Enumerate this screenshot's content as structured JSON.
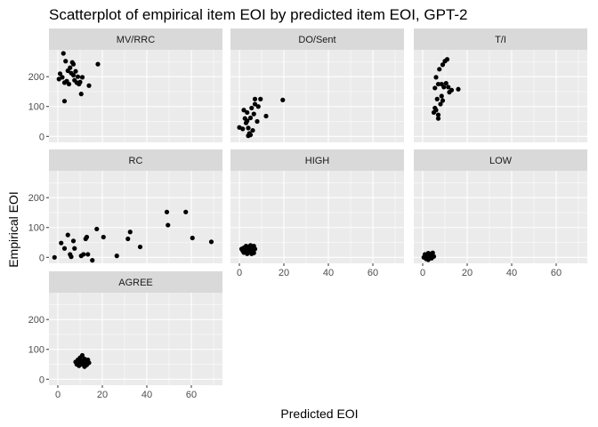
{
  "chart_data": {
    "type": "scatter",
    "title": "Scatterplot of empirical item EOI by predicted item EOI, GPT-2",
    "xlabel": "Predicted EOI",
    "ylabel": "Empirical EOI",
    "xlim": [
      -4,
      74
    ],
    "ylim": [
      -20,
      290
    ],
    "x_ticks": [
      0,
      20,
      40,
      60
    ],
    "y_ticks": [
      0,
      100,
      200
    ],
    "grid": true,
    "background": "#EBEBEB",
    "strip_color": "#D9D9D9",
    "point_color": "#000000",
    "panels": [
      {
        "name": "MV/RRC",
        "points": [
          [
            0.5,
            192
          ],
          [
            1,
            210
          ],
          [
            2,
            198
          ],
          [
            2.5,
            278
          ],
          [
            3,
            180
          ],
          [
            3,
            118
          ],
          [
            3.5,
            252
          ],
          [
            4,
            185
          ],
          [
            4.5,
            220
          ],
          [
            5,
            175
          ],
          [
            5.5,
            230
          ],
          [
            6,
            212
          ],
          [
            6.5,
            248
          ],
          [
            7,
            242
          ],
          [
            7,
            205
          ],
          [
            7.5,
            188
          ],
          [
            8,
            218
          ],
          [
            8.5,
            180
          ],
          [
            9,
            200
          ],
          [
            9.5,
            175
          ],
          [
            10,
            182
          ],
          [
            10.5,
            142
          ],
          [
            11,
            198
          ],
          [
            14,
            170
          ],
          [
            18,
            242
          ]
        ]
      },
      {
        "name": "DO/Sent",
        "points": [
          [
            0,
            30
          ],
          [
            1.5,
            25
          ],
          [
            2,
            88
          ],
          [
            2.5,
            60
          ],
          [
            3,
            45
          ],
          [
            3.5,
            52
          ],
          [
            3.5,
            80
          ],
          [
            4,
            2
          ],
          [
            4,
            28
          ],
          [
            4.5,
            10
          ],
          [
            5,
            5
          ],
          [
            5,
            62
          ],
          [
            5.5,
            95
          ],
          [
            6,
            20
          ],
          [
            6.5,
            75
          ],
          [
            7,
            108
          ],
          [
            7,
            125
          ],
          [
            8,
            50
          ],
          [
            8.5,
            100
          ],
          [
            9.5,
            125
          ],
          [
            12,
            68
          ],
          [
            19.5,
            122
          ]
        ]
      },
      {
        "name": "T/I",
        "points": [
          [
            5,
            80
          ],
          [
            5.5,
            95
          ],
          [
            5.5,
            162
          ],
          [
            6,
            198
          ],
          [
            6,
            88
          ],
          [
            6.5,
            125
          ],
          [
            7,
            72
          ],
          [
            7,
            60
          ],
          [
            7,
            175
          ],
          [
            7.5,
            225
          ],
          [
            8,
            108
          ],
          [
            8.5,
            175
          ],
          [
            8.5,
            135
          ],
          [
            9,
            240
          ],
          [
            9,
            120
          ],
          [
            9.5,
            165
          ],
          [
            10,
            252
          ],
          [
            10.5,
            178
          ],
          [
            11,
            258
          ],
          [
            11.5,
            165
          ],
          [
            12,
            148
          ],
          [
            13,
            155
          ],
          [
            16,
            158
          ]
        ]
      },
      {
        "name": "RC",
        "points": [
          [
            -1.5,
            0
          ],
          [
            1.5,
            48
          ],
          [
            3,
            30
          ],
          [
            4.5,
            75
          ],
          [
            5.5,
            10
          ],
          [
            6,
            2
          ],
          [
            7,
            55
          ],
          [
            7.5,
            30
          ],
          [
            10.5,
            5
          ],
          [
            11.5,
            10
          ],
          [
            12.5,
            62
          ],
          [
            13,
            68
          ],
          [
            13.5,
            10
          ],
          [
            15.5,
            -10
          ],
          [
            17.5,
            95
          ],
          [
            20.5,
            68
          ],
          [
            26.5,
            5
          ],
          [
            31.5,
            62
          ],
          [
            32.5,
            85
          ],
          [
            37,
            35
          ],
          [
            49,
            152
          ],
          [
            49.5,
            108
          ],
          [
            57.5,
            152
          ],
          [
            60.5,
            65
          ],
          [
            69,
            52
          ]
        ]
      },
      {
        "name": "HIGH",
        "points": [
          [
            1,
            28
          ],
          [
            1.5,
            22
          ],
          [
            2,
            32
          ],
          [
            2.5,
            25
          ],
          [
            3,
            18
          ],
          [
            3,
            38
          ],
          [
            3.5,
            28
          ],
          [
            4,
            20
          ],
          [
            4,
            35
          ],
          [
            4.5,
            25
          ],
          [
            5,
            18
          ],
          [
            5,
            40
          ],
          [
            5.5,
            30
          ],
          [
            6,
            22
          ],
          [
            6.5,
            38
          ],
          [
            7,
            28
          ],
          [
            3.5,
            12
          ],
          [
            5.5,
            12
          ],
          [
            2,
            16
          ],
          [
            6.5,
            15
          ]
        ]
      },
      {
        "name": "LOW",
        "points": [
          [
            0.5,
            0
          ],
          [
            1,
            5
          ],
          [
            1.5,
            -5
          ],
          [
            2,
            8
          ],
          [
            2,
            2
          ],
          [
            2.5,
            -8
          ],
          [
            3,
            5
          ],
          [
            3,
            12
          ],
          [
            3.5,
            0
          ],
          [
            4,
            10
          ],
          [
            4.5,
            15
          ],
          [
            5,
            3
          ],
          [
            1,
            10
          ],
          [
            2.5,
            14
          ],
          [
            4,
            -3
          ]
        ]
      },
      {
        "name": "AGREE",
        "points": [
          [
            8,
            58
          ],
          [
            8.5,
            50
          ],
          [
            9,
            65
          ],
          [
            9.5,
            45
          ],
          [
            10,
            60
          ],
          [
            10,
            72
          ],
          [
            10.5,
            55
          ],
          [
            11,
            50
          ],
          [
            11,
            80
          ],
          [
            11.5,
            62
          ],
          [
            12,
            42
          ],
          [
            12,
            68
          ],
          [
            12.5,
            55
          ],
          [
            13,
            48
          ],
          [
            13.5,
            65
          ],
          [
            14,
            55
          ],
          [
            9,
            55
          ],
          [
            12.5,
            60
          ]
        ]
      }
    ]
  }
}
